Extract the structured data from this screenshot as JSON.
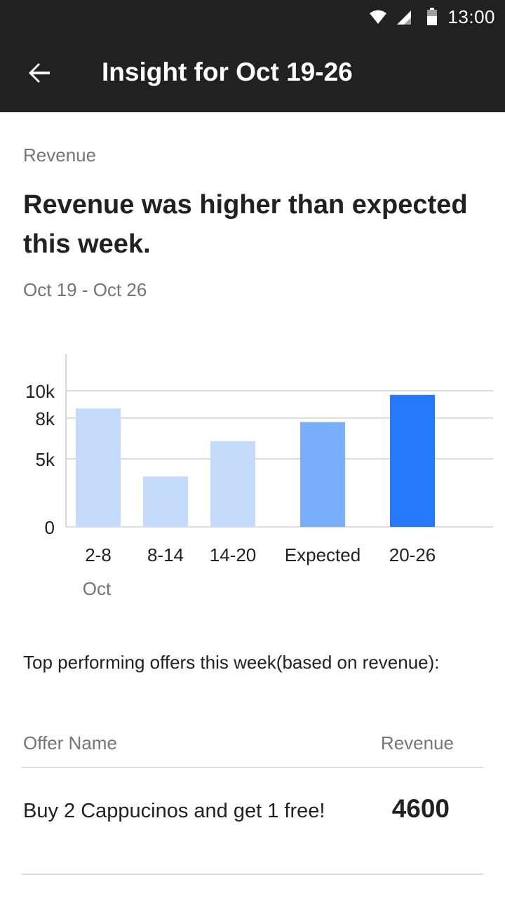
{
  "status_bar": {
    "time": "13:00",
    "icons": [
      "wifi-icon",
      "signal-icon",
      "battery-icon"
    ]
  },
  "app_bar": {
    "back_icon": "arrow-back-icon",
    "title": "Insight for Oct 19-26"
  },
  "insight": {
    "section_label": "Revenue",
    "headline": "Revenue was higher than expected this week.",
    "date_range": "Oct 19 - Oct 26"
  },
  "chart_data": {
    "type": "bar",
    "categories": [
      "2-8",
      "8-14",
      "14-20",
      "Expected",
      "20-26"
    ],
    "category_sublabel": {
      "index": 0,
      "text": "Oct"
    },
    "values": [
      8700,
      3700,
      6300,
      7700,
      9700
    ],
    "bar_colors": [
      "#c4dbfc",
      "#c4dbfc",
      "#c4dbfc",
      "#79aefb",
      "#2579fb"
    ],
    "y_ticks": [
      {
        "value": 0,
        "label": "0"
      },
      {
        "value": 5000,
        "label": "5k"
      },
      {
        "value": 8000,
        "label": "8k"
      },
      {
        "value": 10000,
        "label": "10k"
      }
    ],
    "ylim": [
      0,
      10000
    ],
    "title": "",
    "xlabel": "",
    "ylabel": "",
    "grid": true,
    "legend": "none"
  },
  "offers": {
    "intro": "Top performing offers this week(based on revenue):",
    "columns": {
      "name": "Offer Name",
      "revenue": "Revenue"
    },
    "rows": [
      {
        "name": "Buy 2 Cappucinos and get 1 free!",
        "revenue": "4600"
      }
    ]
  },
  "colors": {
    "bar_dark": "#212121",
    "text_muted": "#757575",
    "accent": "#2579fb"
  }
}
